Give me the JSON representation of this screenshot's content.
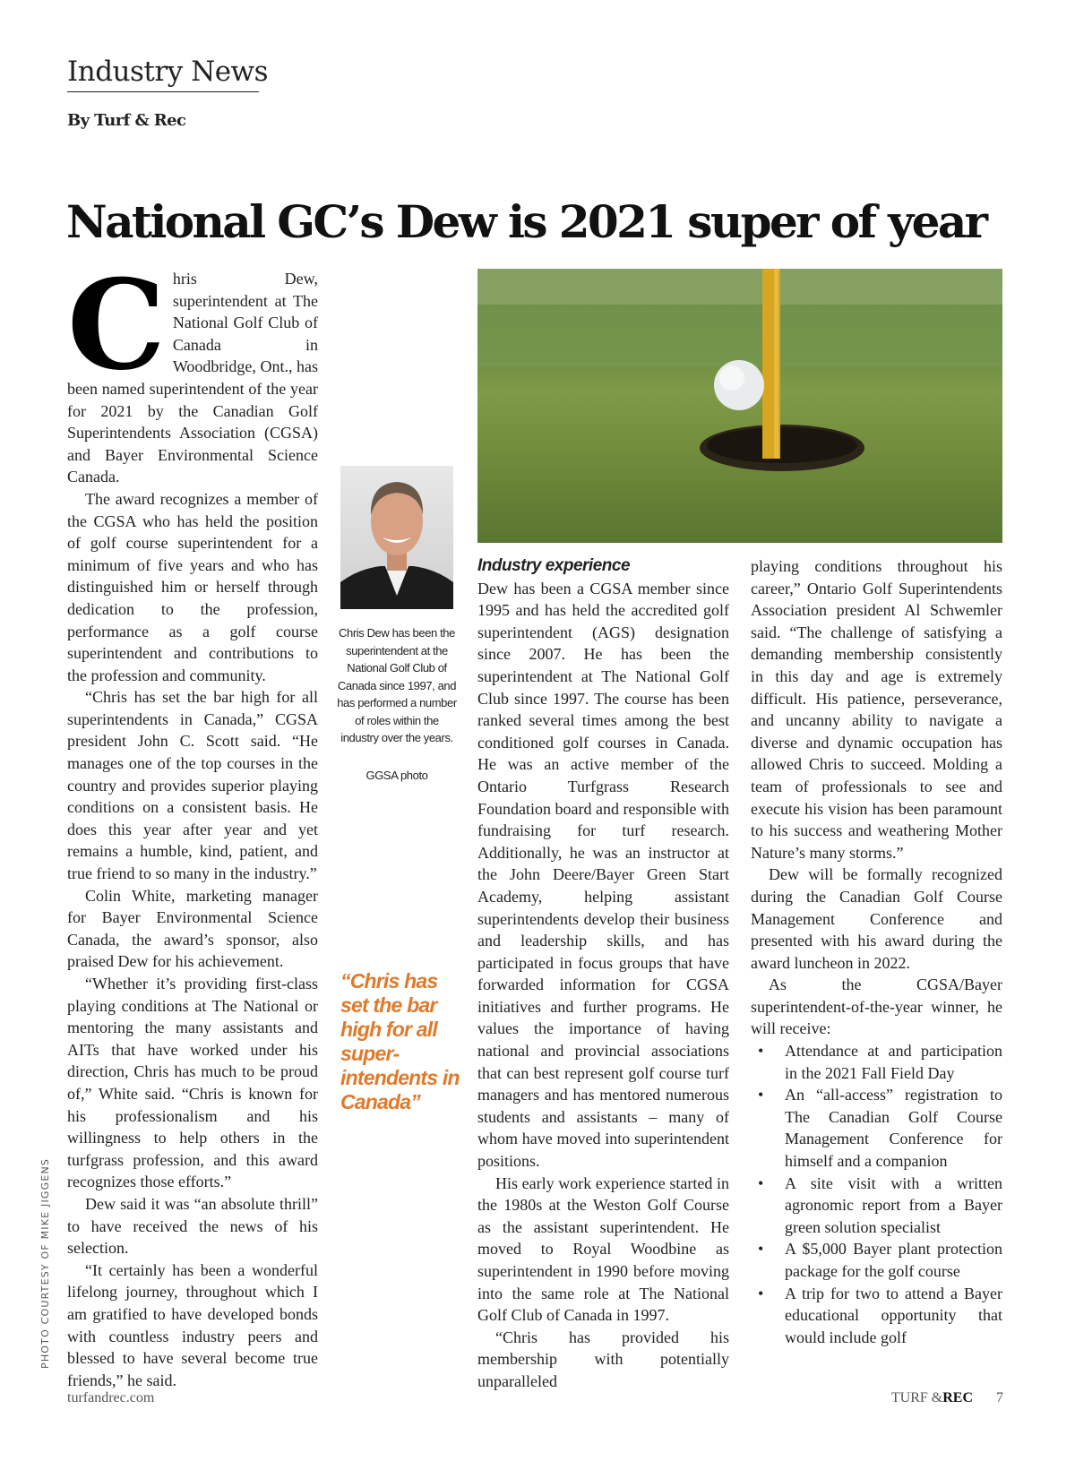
{
  "header": {
    "section": "Industry News",
    "byline": "By Turf & Rec"
  },
  "article": {
    "headline": "National GC’s Dew is 2021 super of year",
    "dropcap": "C",
    "col1": [
      "hris Dew, superintendent at The National Golf Club of Canada in Woodbridge, Ont., has been named superintendent of the year for 2021 by the Canadian Golf Superintendents Association (CGSA) and Bayer Environmental Science Canada.",
      "The award recognizes a member of the CGSA who has held the position of golf course superintendent for a minimum of five years and who has distinguished him or herself through dedication to the profession, performance as a golf course superintendent and contributions to the profession and community.",
      "“Chris has set the bar high for all superintendents in Canada,” CGSA president John C. Scott said. “He manages one of the top courses in the country and provides superior playing conditions on a consistent basis. He does this year after year and yet remains a humble, kind, patient, and true friend to so many in the industry.”",
      "Colin White, marketing manager for Bayer Environmental Science Canada, the award’s sponsor, also praised Dew for his achievement.",
      "“Whether it’s providing first-class playing conditions at The National or mentoring the many assistants and AITs that have worked under his direction, Chris has much to be proud of,” White said. “Chris is known for his professionalism and his willingness to help others in the turfgrass profession, and this award recognizes those efforts.”",
      "Dew said it was “an absolute thrill” to have received the news of his selection.",
      "“It certainly has been a wonderful lifelong journey, throughout which I am gratified to have developed bonds with countless industry peers and blessed to have several become true friends,” he said."
    ],
    "subhead": "Industry experience",
    "col2": [
      "Dew has been a CGSA member since 1995 and has held the accredited golf superintendent (AGS) designation since 2007. He has been the superintendent at The National Golf Club since 1997. The course has been ranked several times among the best conditioned golf courses in Canada. He was an active member of the Ontario Turfgrass Research Foundation board and responsible with fundraising for turf research. Additionally, he was an instructor at the John Deere/Bayer Green Start Academy, helping assistant superintendents develop their business and leadership skills, and has participated in focus groups that have forwarded information for CGSA initiatives and further programs. He values the importance of having national and provincial associations that can best represent golf course turf managers and has mentored numerous students and assistants – many of whom have moved into superintendent positions.",
      "His early work experience started in the 1980s at the Weston Golf Course as the assistant superintendent. He moved to Royal Woodbine as superintendent in 1990 before moving into the same role at The National Golf Club of Canada in 1997.",
      "“Chris has provided his membership with potentially unparalleled"
    ],
    "col3": [
      "playing conditions throughout his career,” Ontario Golf Superintendents Association president Al Schwemler said. “The challenge of satisfying a demanding membership consistently in this day and age is extremely difficult. His patience, perseverance, and uncanny ability to navigate a diverse and dynamic occupation has allowed Chris to succeed. Molding a team of professionals to see and execute his vision has been paramount to his success and weathering Mother Nature’s many storms.”",
      "Dew will be formally recognized during the Canadian Golf Course Management Conference and presented with his award during the award luncheon in 2022.",
      "As the CGSA/Bayer superintendent-of-the-year winner, he will receive:"
    ],
    "bullets": [
      "Attendance at and participation in the 2021 Fall Field Day",
      "An “all-access” registration to The Canadian Golf Course Management Conference for himself and a companion",
      "A site visit with a written agronomic report from a Bayer green solution specialist",
      "A $5,000 Bayer plant protection package for the golf course",
      "A trip for two to attend a Bayer educational opportunity that would include golf"
    ],
    "caption": "Chris Dew has been the superintendent at the National Golf Club of Canada since 1997, and has performed a number of roles within the industry over the years.",
    "caption_credit": "GGSA photo",
    "pull_quote": "“Chris has set the bar high for all super-intendents in Canada”",
    "photo_credit": "PHOTO COURTESY OF MIKE JIGGENS",
    "accent_color": "#e07a2a"
  },
  "footer": {
    "site": "turfandrec.com",
    "brand_light": "TURF &",
    "brand_bold": "REC",
    "page": "7"
  }
}
